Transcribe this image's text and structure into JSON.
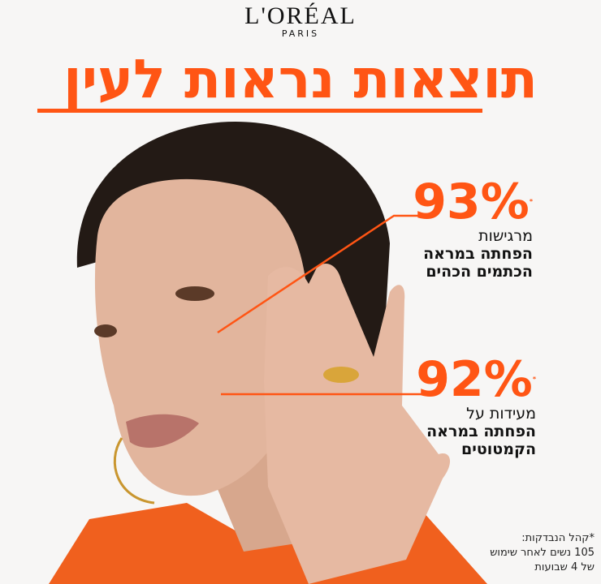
{
  "logo": {
    "brand": "L'ORÉAL",
    "sub": "PARIS"
  },
  "headline": "תוצאות נראות לעין",
  "stats": [
    {
      "percent": "93%",
      "asterisk": "*",
      "line1": "מרגישות",
      "line2": "הפחתה במראה",
      "line3": "הכתמים הכהים"
    },
    {
      "percent": "92%",
      "asterisk": "*",
      "line1": "מעידות על",
      "line2": "הפחתה במראה",
      "line3": "הקמטוטים"
    }
  ],
  "footnote": {
    "line1": "*קהל הנבדקות:",
    "line2": "105 נשים לאחר שימוש",
    "line3": "של 4 שבועות"
  },
  "colors": {
    "accent": "#ff5514",
    "text": "#111111",
    "background": "#f7f6f5"
  }
}
